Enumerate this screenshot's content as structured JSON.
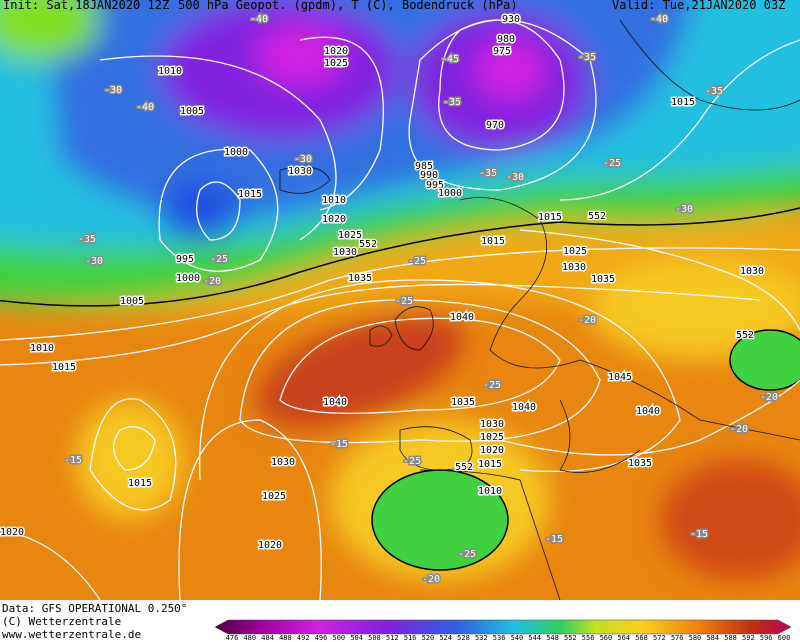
{
  "header": {
    "init": "Init: Sat,18JAN2020 12Z",
    "title": "500 hPa Geopot. (gpdm), T (C), Bodendruck (hPa)",
    "valid": "Valid: Tue,21JAN2020 03Z"
  },
  "footer": {
    "data": "Data: GFS OPERATIONAL 0.250°",
    "copyright": "(C) Wetterzentrale",
    "url": "www.wetterzentrale.de"
  },
  "colorbar": {
    "labels": [
      "476",
      "480",
      "484",
      "488",
      "492",
      "496",
      "500",
      "504",
      "508",
      "512",
      "516",
      "520",
      "524",
      "528",
      "532",
      "536",
      "540",
      "544",
      "548",
      "552",
      "556",
      "560",
      "564",
      "568",
      "572",
      "576",
      "580",
      "584",
      "588",
      "592",
      "596",
      "600"
    ]
  },
  "map": {
    "pressure_labels": [
      "1010",
      "1005",
      "1000",
      "1020",
      "1025",
      "1030",
      "1015",
      "1010",
      "1020",
      "1025",
      "1030",
      "995",
      "1000",
      "1005",
      "985",
      "990",
      "995",
      "1000",
      "930",
      "980",
      "975",
      "970",
      "1015",
      "1015",
      "1025",
      "1030",
      "1035",
      "1035",
      "1040",
      "1040",
      "1035",
      "1040",
      "1030",
      "1025",
      "1020",
      "1015",
      "1010",
      "1030",
      "1025",
      "1020",
      "1045",
      "1040",
      "1035",
      "1030",
      "1015",
      "1010",
      "1015",
      "1015",
      "1020"
    ],
    "temperature_labels": [
      "-40",
      "-40",
      "-30",
      "-40",
      "-45",
      "-35",
      "-35",
      "-30",
      "-35",
      "-30",
      "-25",
      "-30",
      "-35",
      "-35",
      "-30",
      "-25",
      "-20",
      "-25",
      "-25",
      "-20",
      "-25",
      "-15",
      "-20",
      "-20",
      "-15",
      "-25",
      "-15",
      "-15",
      "-25",
      "-20"
    ],
    "height_labels": [
      "552",
      "552",
      "552",
      "552"
    ]
  }
}
